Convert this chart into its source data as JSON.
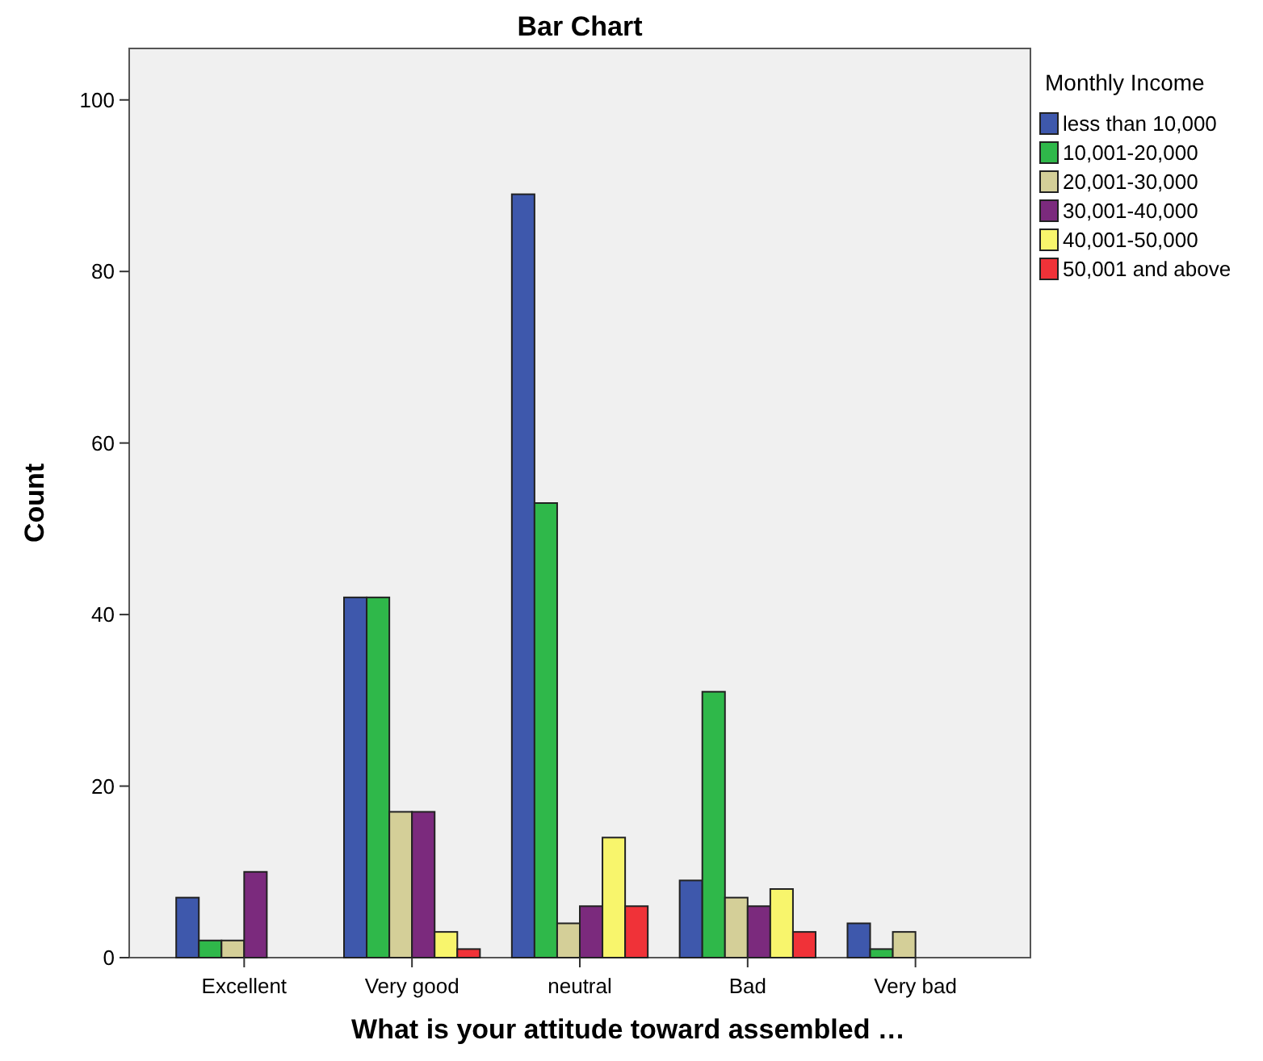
{
  "chart_data": {
    "type": "bar",
    "title": "Bar Chart",
    "xlabel": "What is your attitude toward assembled …",
    "ylabel": "Count",
    "legend_title": "Monthly Income",
    "categories": [
      "Excellent",
      "Very good",
      "neutral",
      "Bad",
      "Very bad"
    ],
    "series": [
      {
        "name": "less than 10,000",
        "color": "#3e58ac",
        "values": [
          7,
          42,
          89,
          9,
          4
        ]
      },
      {
        "name": "10,001-20,000",
        "color": "#2fb84a",
        "values": [
          2,
          42,
          53,
          31,
          1
        ]
      },
      {
        "name": "20,001-30,000",
        "color": "#d4cf98",
        "values": [
          2,
          17,
          4,
          7,
          3
        ]
      },
      {
        "name": "30,001-40,000",
        "color": "#7b2a7d",
        "values": [
          10,
          17,
          6,
          6,
          null
        ]
      },
      {
        "name": "40,001-50,000",
        "color": "#f8f56c",
        "values": [
          null,
          3,
          14,
          8,
          null
        ]
      },
      {
        "name": "50,001 and above",
        "color": "#f03238",
        "values": [
          null,
          1,
          6,
          3,
          null
        ]
      }
    ],
    "ylim": [
      0,
      106
    ],
    "yticks": [
      0,
      20,
      40,
      60,
      80,
      100
    ],
    "grid": false,
    "legend": "right"
  }
}
